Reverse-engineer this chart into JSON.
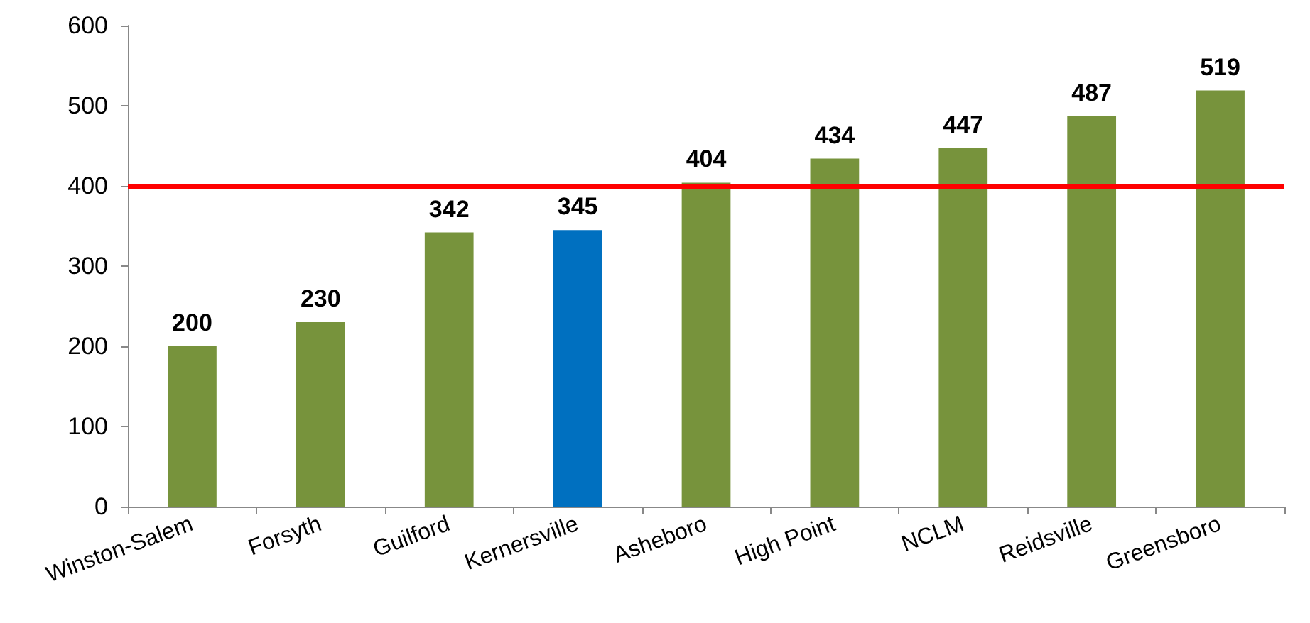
{
  "chart_data": {
    "type": "bar",
    "categories": [
      "Winston-Salem",
      "Forsyth",
      "Guilford",
      "Kernersville",
      "Asheboro",
      "High Point",
      "NCLM",
      "Reidsville",
      "Greensboro"
    ],
    "values": [
      200,
      230,
      342,
      345,
      404,
      434,
      447,
      487,
      519
    ],
    "colors": [
      "#77933c",
      "#77933c",
      "#77933c",
      "#0070c0",
      "#77933c",
      "#77933c",
      "#77933c",
      "#77933c",
      "#77933c"
    ],
    "ylim": [
      0,
      600
    ],
    "yticks": [
      0,
      100,
      200,
      300,
      400,
      500,
      600
    ],
    "grid": false,
    "data_labels": true,
    "ref_lines": [
      {
        "axis": "y",
        "value": 400,
        "color": "#ff0000",
        "line_style": "solid"
      }
    ]
  }
}
